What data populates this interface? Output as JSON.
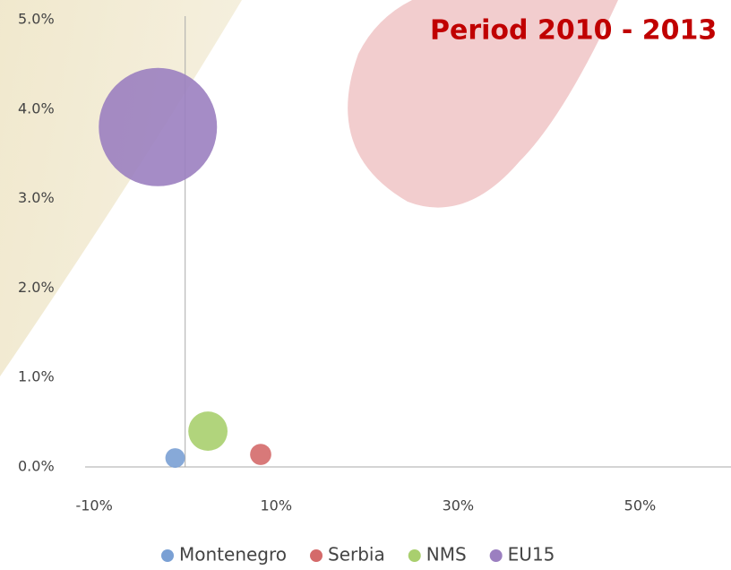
{
  "chart_data": {
    "type": "bubble",
    "title": "Period 2010 - 2013",
    "xlim": [
      -11,
      60
    ],
    "ylim": [
      0,
      5
    ],
    "xticks": [
      {
        "value": -10,
        "label": "-10%"
      },
      {
        "value": 10,
        "label": "10%"
      },
      {
        "value": 30,
        "label": "30%"
      },
      {
        "value": 50,
        "label": "50%"
      }
    ],
    "yticks": [
      {
        "value": 0,
        "label": "0.0%"
      },
      {
        "value": 1,
        "label": "1.0%"
      },
      {
        "value": 2,
        "label": "2.0%"
      },
      {
        "value": 3,
        "label": "3.0%"
      },
      {
        "value": 4,
        "label": "4.0%"
      },
      {
        "value": 5,
        "label": "5.0%"
      }
    ],
    "series": [
      {
        "name": "Montenegro",
        "color": "#7aa0d4",
        "x": [
          -1.1
        ],
        "values": [
          0.1
        ],
        "sizes": [
          1.2
        ]
      },
      {
        "name": "Serbia",
        "color": "#d46a6a",
        "x": [
          8.3
        ],
        "values": [
          0.14
        ],
        "sizes": [
          1.4
        ]
      },
      {
        "name": "NMS",
        "color": "#a9cf6e",
        "x": [
          2.5
        ],
        "values": [
          0.4
        ],
        "sizes": [
          4.8
        ]
      },
      {
        "name": "EU15",
        "color": "#9b7fc0",
        "x": [
          -3.0
        ],
        "values": [
          3.8
        ],
        "sizes": [
          43.6
        ]
      }
    ]
  }
}
